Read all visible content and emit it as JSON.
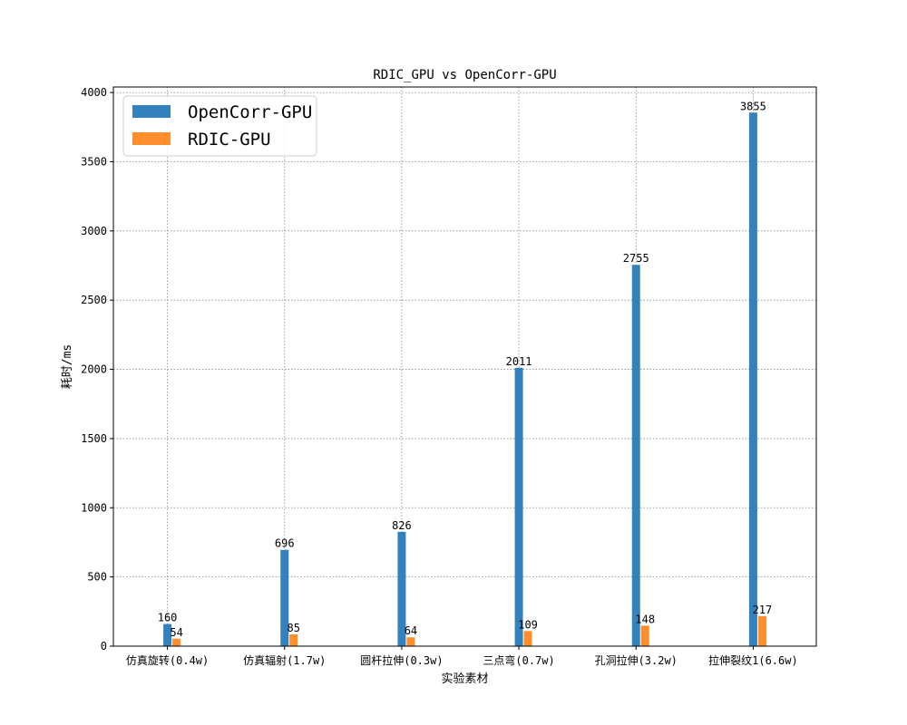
{
  "chart_data": {
    "type": "bar",
    "title": "RDIC_GPU vs OpenCorr-GPU",
    "xlabel": "实验素材",
    "ylabel": "耗时/ms",
    "categories": [
      "仿真旋转(0.4w)",
      "仿真辐射(1.7w)",
      "圆杆拉伸(0.3w)",
      "三点弯(0.7w)",
      "孔洞拉伸(3.2w)",
      "拉伸裂纹1(6.6w)"
    ],
    "series": [
      {
        "name": "OpenCorr-GPU",
        "color": "#3482bd",
        "values": [
          160,
          696,
          826,
          2011,
          2755,
          3855
        ]
      },
      {
        "name": "RDIC-GPU",
        "color": "#fd8e2b",
        "values": [
          54,
          85,
          64,
          109,
          148,
          217
        ]
      }
    ],
    "ylim": [
      0,
      4040
    ],
    "yticks": [
      0,
      500,
      1000,
      1500,
      2000,
      2500,
      3000,
      3500,
      4000
    ],
    "grid": true,
    "legend_position": "top-left"
  }
}
